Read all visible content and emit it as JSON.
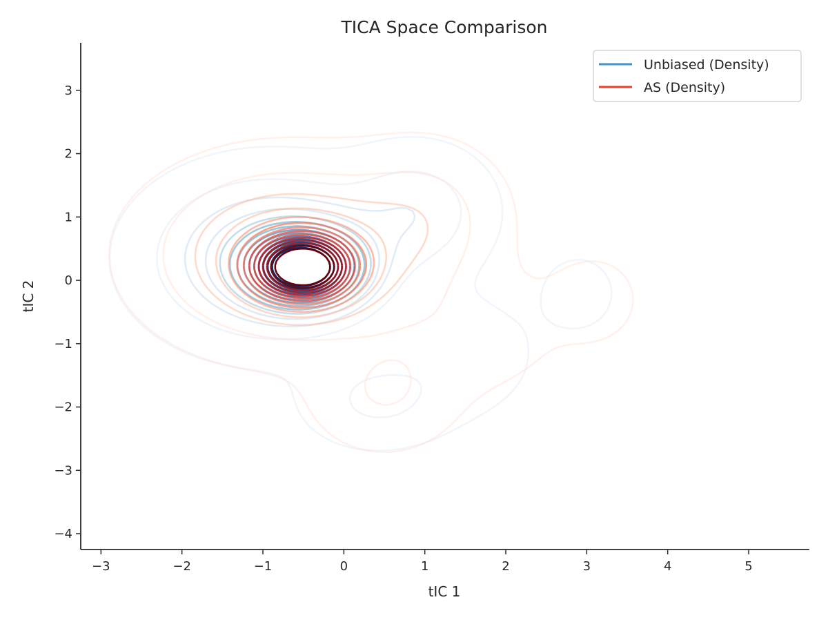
{
  "chart_data": {
    "type": "contour",
    "title": "TICA Space Comparison",
    "xlabel": "tIC 1",
    "ylabel": "tIC 2",
    "xlim": [
      -3.25,
      5.75
    ],
    "ylim": [
      -4.25,
      3.75
    ],
    "xticks": [
      -3,
      -2,
      -1,
      0,
      1,
      2,
      3,
      4,
      5
    ],
    "yticks": [
      -4,
      -3,
      -2,
      -1,
      0,
      1,
      2,
      3
    ],
    "xtick_labels": [
      "−3",
      "−2",
      "−1",
      "0",
      "1",
      "2",
      "3",
      "4",
      "5"
    ],
    "ytick_labels": [
      "−4",
      "−3",
      "−2",
      "−1",
      "0",
      "1",
      "2",
      "3"
    ],
    "grid": false,
    "legend_position": "top-right",
    "series": [
      {
        "name": "Unbiased (Density)",
        "kind": "kde-density-contours",
        "colormap": "Blues",
        "legend_color": "#4292c6",
        "mode": {
          "x": -0.5,
          "y": 0.2
        },
        "levels": 14,
        "outer_extent": {
          "x": [
            -2.4,
            3.5
          ],
          "y": [
            -2.9,
            2.4
          ]
        }
      },
      {
        "name": "AS (Density)",
        "kind": "kde-density-contours",
        "colormap": "Reds",
        "legend_color": "#ef3b2c",
        "mode": {
          "x": -0.5,
          "y": 0.2
        },
        "levels": 14,
        "outer_extent": {
          "x": [
            -2.5,
            3.8
          ],
          "y": [
            -3.0,
            2.55
          ]
        }
      }
    ]
  }
}
